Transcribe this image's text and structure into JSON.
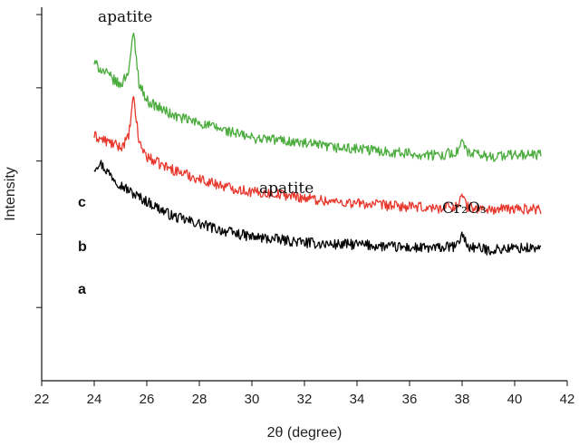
{
  "chart_data": {
    "type": "line",
    "title": "",
    "xlabel": "2θ (degree)",
    "ylabel": "Intensity",
    "xlim": [
      22,
      42
    ],
    "x_ticks": [
      22,
      24,
      26,
      28,
      30,
      32,
      34,
      36,
      38,
      40,
      42
    ],
    "y_ticks_labeled": false,
    "y_tick_count": 5,
    "grid": false,
    "legend": "none",
    "series": [
      {
        "name": "a",
        "color": "#000000",
        "x": [
          24.0,
          24.2,
          24.5,
          25.0,
          25.5,
          26.0,
          27.0,
          28.0,
          29.0,
          30.0,
          31.0,
          32.0,
          33.0,
          34.0,
          35.0,
          36.0,
          37.0,
          37.8,
          38.0,
          38.2,
          39.0,
          40.0,
          41.0
        ],
        "values": [
          0.57,
          0.585,
          0.56,
          0.525,
          0.5,
          0.48,
          0.44,
          0.42,
          0.4,
          0.385,
          0.378,
          0.37,
          0.365,
          0.365,
          0.36,
          0.356,
          0.355,
          0.36,
          0.395,
          0.36,
          0.35,
          0.355,
          0.355
        ]
      },
      {
        "name": "b",
        "color": "#e8372c",
        "x": [
          24.0,
          24.5,
          25.0,
          25.3,
          25.5,
          25.7,
          26.0,
          26.5,
          27.0,
          28.0,
          29.0,
          30.0,
          31.0,
          32.0,
          33.0,
          34.0,
          35.0,
          36.0,
          37.0,
          37.8,
          38.0,
          38.2,
          39.0,
          40.0,
          41.0
        ],
        "values": [
          0.655,
          0.64,
          0.625,
          0.65,
          0.76,
          0.64,
          0.6,
          0.58,
          0.565,
          0.54,
          0.52,
          0.505,
          0.5,
          0.49,
          0.48,
          0.475,
          0.47,
          0.465,
          0.462,
          0.468,
          0.495,
          0.465,
          0.458,
          0.46,
          0.46
        ]
      },
      {
        "name": "c",
        "color": "#4aac3c",
        "x": [
          24.0,
          24.5,
          25.0,
          25.3,
          25.5,
          25.7,
          26.0,
          26.5,
          27.0,
          28.0,
          29.0,
          30.0,
          31.0,
          32.0,
          33.0,
          34.0,
          35.0,
          36.0,
          37.0,
          37.8,
          38.0,
          38.2,
          39.0,
          40.0,
          41.0
        ],
        "values": [
          0.85,
          0.82,
          0.79,
          0.83,
          0.93,
          0.8,
          0.75,
          0.73,
          0.71,
          0.69,
          0.67,
          0.65,
          0.645,
          0.635,
          0.625,
          0.62,
          0.615,
          0.608,
          0.603,
          0.612,
          0.64,
          0.61,
          0.6,
          0.605,
          0.605
        ]
      }
    ],
    "annotations": [
      "apatite",
      "apatite",
      "Cr₂O₃"
    ],
    "sample_labels": [
      "c",
      "b",
      "a"
    ]
  }
}
